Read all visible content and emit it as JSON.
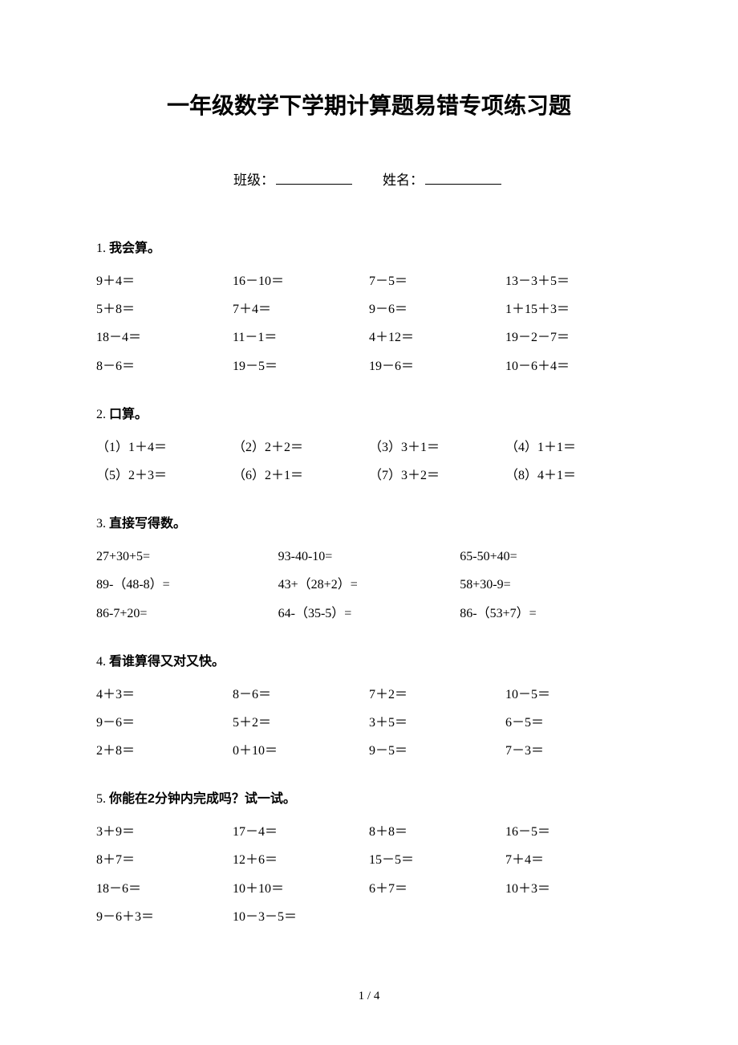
{
  "title": "一年级数学下学期计算题易错专项练习题",
  "meta": {
    "class_label": "班级：",
    "name_label": "姓名："
  },
  "sections": [
    {
      "num": "1.",
      "title": "我会算。",
      "cols": 4,
      "items": [
        "9＋4＝",
        "16－10＝",
        "7－5＝",
        "13－3＋5＝",
        "5＋8＝",
        "7＋4＝",
        "9－6＝",
        "1＋15＋3＝",
        "18－4＝",
        "11－1＝",
        "4＋12＝",
        "19－2－7＝",
        "8－6＝",
        "19－5＝",
        "19－6＝",
        "10－6＋4＝"
      ]
    },
    {
      "num": "2.",
      "title": "口算。",
      "cols": 4,
      "items": [
        "（1）1＋4＝",
        "（2）2＋2＝",
        "（3）3＋1＝",
        "（4）1＋1＝",
        "（5）2＋3＝",
        "（6）2＋1＝",
        "（7）3＋2＝",
        "（8）4＋1＝"
      ]
    },
    {
      "num": "3.",
      "title": "直接写得数。",
      "cols": 3,
      "items": [
        "27+30+5=",
        "93-40-10=",
        "65-50+40=",
        "89-（48-8）=",
        "43+（28+2）=",
        "58+30-9=",
        "86-7+20=",
        "64-（35-5）=",
        "86-（53+7）="
      ]
    },
    {
      "num": "4.",
      "title": "看谁算得又对又快。",
      "cols": 4,
      "items": [
        "4＋3＝",
        "8－6＝",
        "7＋2＝",
        "10－5＝",
        "9－6＝",
        "5＋2＝",
        "3＋5＝",
        "6－5＝",
        "2＋8＝",
        "0＋10＝",
        "9－5＝",
        "7－3＝"
      ]
    },
    {
      "num": "5.",
      "title": "你能在2分钟内完成吗？试一试。",
      "cols": 4,
      "items": [
        "3＋9＝",
        "17－4＝",
        "8＋8＝",
        "16－5＝",
        "8＋7＝",
        "12＋6＝",
        "15－5＝",
        "7＋4＝",
        "18－6＝",
        "10＋10＝",
        "6＋7＝",
        "10＋3＝",
        "9－6＋3＝",
        "10－3－5＝"
      ]
    }
  ],
  "page_number": "1 / 4"
}
